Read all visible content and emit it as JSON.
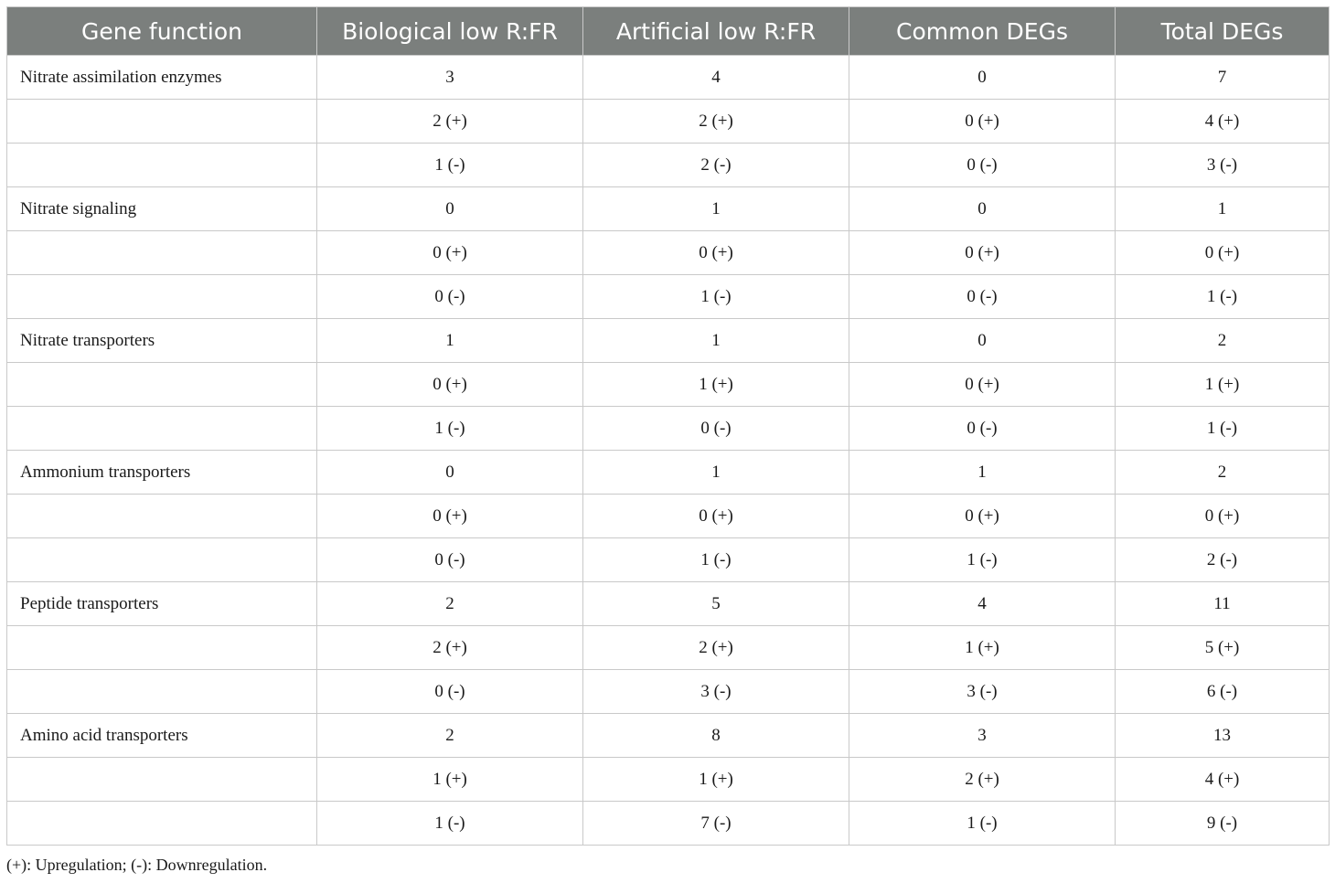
{
  "table": {
    "headers": [
      "Gene function",
      "Biological low R:FR",
      "Artificial low R:FR",
      "Common DEGs",
      "Total DEGs"
    ],
    "rows": [
      [
        "Nitrate assimilation enzymes",
        "3",
        "4",
        "0",
        "7"
      ],
      [
        "",
        "2 (+)",
        "2 (+)",
        "0 (+)",
        "4 (+)"
      ],
      [
        "",
        "1 (-)",
        "2 (-)",
        "0 (-)",
        "3 (-)"
      ],
      [
        "Nitrate signaling",
        "0",
        "1",
        "0",
        "1"
      ],
      [
        "",
        "0 (+)",
        "0 (+)",
        "0 (+)",
        "0 (+)"
      ],
      [
        "",
        "0 (-)",
        "1 (-)",
        "0 (-)",
        "1 (-)"
      ],
      [
        "Nitrate transporters",
        "1",
        "1",
        "0",
        "2"
      ],
      [
        "",
        "0 (+)",
        "1 (+)",
        "0 (+)",
        "1 (+)"
      ],
      [
        "",
        "1 (-)",
        "0 (-)",
        "0 (-)",
        "1 (-)"
      ],
      [
        "Ammonium transporters",
        "0",
        "1",
        "1",
        "2"
      ],
      [
        "",
        "0 (+)",
        "0 (+)",
        "0 (+)",
        "0 (+)"
      ],
      [
        "",
        "0 (-)",
        "1 (-)",
        "1 (-)",
        "2 (-)"
      ],
      [
        "Peptide transporters",
        "2",
        "5",
        "4",
        "11"
      ],
      [
        "",
        "2 (+)",
        "2 (+)",
        "1 (+)",
        "5 (+)"
      ],
      [
        "",
        "0 (-)",
        "3 (-)",
        "3 (-)",
        "6 (-)"
      ],
      [
        "Amino acid transporters",
        "2",
        "8",
        "3",
        "13"
      ],
      [
        "",
        "1 (+)",
        "1 (+)",
        "2 (+)",
        "4 (+)"
      ],
      [
        "",
        "1 (-)",
        "7 (-)",
        "1 (-)",
        "9 (-)"
      ]
    ]
  },
  "footnote": "(+): Upregulation; (-): Downregulation.",
  "colors": {
    "header_bg": "#7b7f7d",
    "header_text": "#ffffff",
    "grid": "#c9c9c9"
  }
}
